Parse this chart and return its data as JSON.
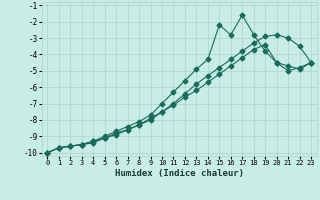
{
  "title": "",
  "xlabel": "Humidex (Indice chaleur)",
  "ylabel": "",
  "bg_color": "#c8ece6",
  "grid_color": "#b0d8d0",
  "line_color": "#1a6b5a",
  "xlim": [
    -0.5,
    23.5
  ],
  "ylim": [
    -10.2,
    -0.8
  ],
  "yticks": [
    -10,
    -9,
    -8,
    -7,
    -6,
    -5,
    -4,
    -3,
    -2,
    -1
  ],
  "xticks": [
    0,
    1,
    2,
    3,
    4,
    5,
    6,
    7,
    8,
    9,
    10,
    11,
    12,
    13,
    14,
    15,
    16,
    17,
    18,
    19,
    20,
    21,
    22,
    23
  ],
  "series1_x": [
    0,
    1,
    2,
    3,
    4,
    5,
    6,
    7,
    8,
    9,
    10,
    11,
    12,
    13,
    14,
    15,
    16,
    17,
    18,
    19,
    20,
    21,
    22,
    23
  ],
  "series1_y": [
    -10,
    -9.7,
    -9.6,
    -9.5,
    -9.4,
    -9.1,
    -8.8,
    -8.6,
    -8.3,
    -8.0,
    -7.5,
    -7.0,
    -6.4,
    -5.8,
    -5.3,
    -4.8,
    -4.3,
    -3.8,
    -3.3,
    -2.9,
    -2.8,
    -3.0,
    -3.5,
    -4.5
  ],
  "series2_x": [
    0,
    1,
    2,
    3,
    4,
    5,
    6,
    7,
    8,
    9,
    10,
    11,
    12,
    13,
    14,
    15,
    16,
    17,
    18,
    19,
    20,
    21,
    22,
    23
  ],
  "series2_y": [
    -10,
    -9.7,
    -9.6,
    -9.5,
    -9.3,
    -9.0,
    -8.7,
    -8.4,
    -8.1,
    -7.7,
    -7.0,
    -6.3,
    -5.6,
    -4.9,
    -4.3,
    -2.2,
    -2.8,
    -1.6,
    -2.8,
    -3.8,
    -4.5,
    -4.7,
    -4.9,
    -4.5
  ],
  "series3_x": [
    0,
    1,
    2,
    3,
    4,
    5,
    6,
    7,
    8,
    9,
    10,
    11,
    12,
    13,
    14,
    15,
    16,
    17,
    18,
    19,
    20,
    21,
    22,
    23
  ],
  "series3_y": [
    -10,
    -9.7,
    -9.6,
    -9.5,
    -9.3,
    -9.1,
    -8.9,
    -8.6,
    -8.3,
    -7.9,
    -7.5,
    -7.1,
    -6.6,
    -6.2,
    -5.7,
    -5.2,
    -4.7,
    -4.2,
    -3.7,
    -3.4,
    -4.5,
    -5.0,
    -4.8,
    -4.5
  ]
}
